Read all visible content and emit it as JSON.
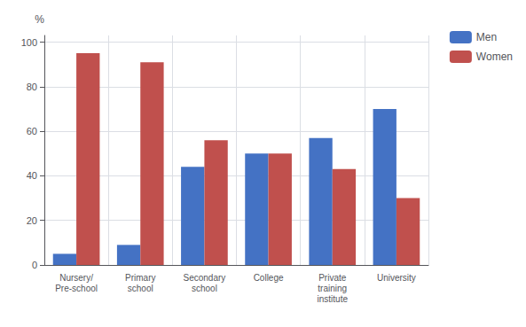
{
  "chart_data": {
    "type": "bar",
    "categories": [
      "Nursery/\nPre-school",
      "Primary\nschool",
      "Secondary\nschool",
      "College",
      "Private\ntraining\ninstitute",
      "University"
    ],
    "series": [
      {
        "name": "Men",
        "color": "#4472C4",
        "values": [
          5,
          9,
          44,
          50,
          57,
          70
        ]
      },
      {
        "name": "Women",
        "color": "#C0504D",
        "values": [
          95,
          91,
          56,
          50,
          43,
          30
        ]
      }
    ],
    "ylabel": "%",
    "ylim": [
      0,
      103
    ],
    "yticks": [
      0,
      20,
      40,
      60,
      80,
      100
    ],
    "grid": true,
    "legend": "right"
  }
}
